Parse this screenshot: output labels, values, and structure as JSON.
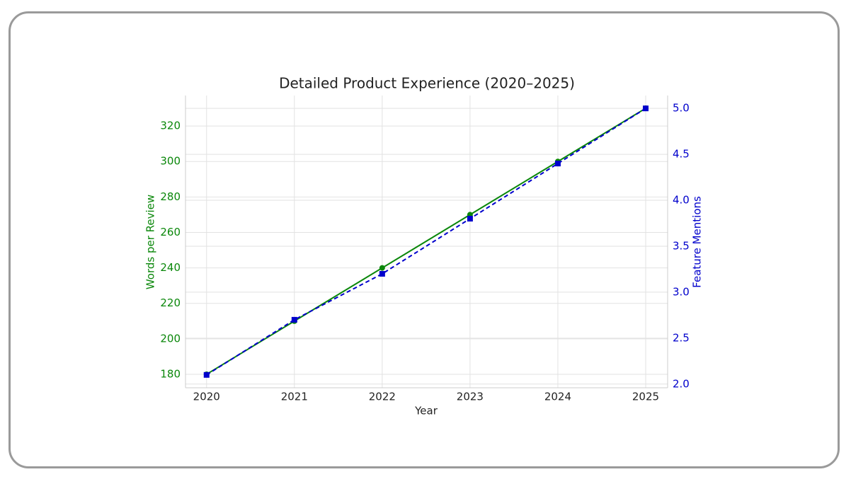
{
  "chart_data": {
    "type": "line",
    "title": "Detailed Product Experience (2020–2025)",
    "x_label": "Year",
    "y_label": "Words per Review",
    "y2_label": "Feature Mentions",
    "x": [
      2020,
      2021,
      2022,
      2023,
      2024,
      2025
    ],
    "xlim": [
      2019.76,
      2025.25
    ],
    "xticks": [
      2020,
      2021,
      2022,
      2023,
      2024,
      2025
    ],
    "ylim": [
      172.4,
      337.2
    ],
    "yticks": [
      180,
      200,
      220,
      240,
      260,
      280,
      300,
      320
    ],
    "y2lim": [
      1.96,
      5.14
    ],
    "y2ticks": [
      {
        "value": 2,
        "label": "2.0"
      },
      2.5,
      {
        "value": 3,
        "label": "3.0"
      },
      3.5,
      {
        "value": 4,
        "label": "4.0"
      },
      4.5,
      {
        "value": 5,
        "label": "5.0"
      }
    ],
    "grid": true,
    "series": [
      {
        "name": "Words per Review",
        "color": "#0a870a",
        "marker": "circle",
        "dash": false,
        "values": [
          180,
          210,
          240,
          270,
          300,
          330
        ]
      },
      {
        "name": "Feature Mentions",
        "color": "#0000cc",
        "marker": "square",
        "dash": true,
        "axis": "y2",
        "values": [
          2.1,
          2.7,
          3.2,
          3.8,
          4.4,
          5.0
        ]
      }
    ]
  }
}
